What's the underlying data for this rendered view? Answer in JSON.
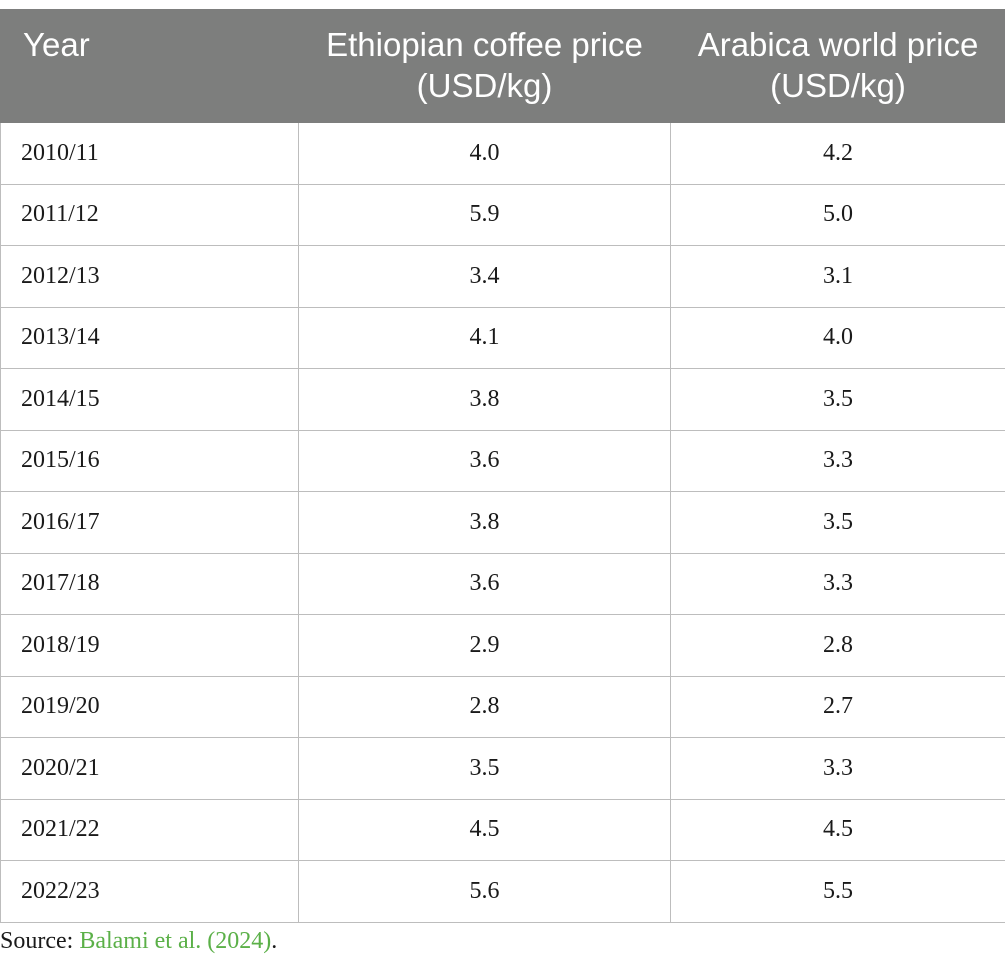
{
  "table": {
    "headers": [
      "Year",
      "Ethiopian coffee price (USD/kg)",
      "Arabica world price (USD/kg)"
    ],
    "rows": [
      [
        "2010/11",
        "4.0",
        "4.2"
      ],
      [
        "2011/12",
        "5.9",
        "5.0"
      ],
      [
        "2012/13",
        "3.4",
        "3.1"
      ],
      [
        "2013/14",
        "4.1",
        "4.0"
      ],
      [
        "2014/15",
        "3.8",
        "3.5"
      ],
      [
        "2015/16",
        "3.6",
        "3.3"
      ],
      [
        "2016/17",
        "3.8",
        "3.5"
      ],
      [
        "2017/18",
        "3.6",
        "3.3"
      ],
      [
        "2018/19",
        "2.9",
        "2.8"
      ],
      [
        "2019/20",
        "2.8",
        "2.7"
      ],
      [
        "2020/21",
        "3.5",
        "3.3"
      ],
      [
        "2021/22",
        "4.5",
        "4.5"
      ],
      [
        "2022/23",
        "5.6",
        "5.5"
      ]
    ]
  },
  "source": {
    "prefix": "Source: ",
    "link_text": "Balami et al. (2024)",
    "suffix": "."
  },
  "colors": {
    "header_background": "#7d7e7d",
    "header_text": "#ffffff",
    "link": "#5bb048",
    "grid_line": "#bdbdbd"
  }
}
